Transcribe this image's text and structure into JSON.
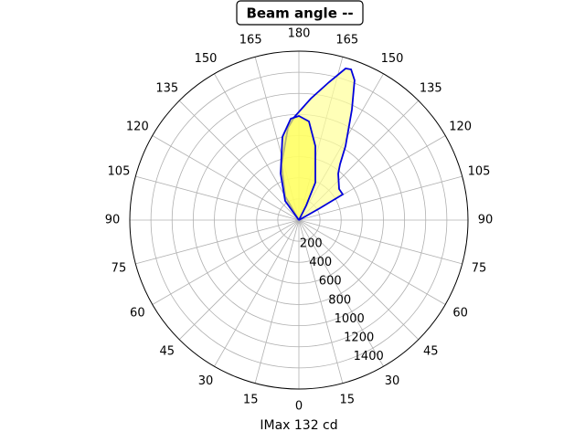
{
  "chart_data": {
    "type": "polar",
    "title": "Beam angle --",
    "xlabel": "IMax 132 cd",
    "rlim": [
      0,
      1600
    ],
    "rticks": [
      200,
      400,
      600,
      800,
      1000,
      1200,
      1400
    ],
    "thetaticks": [
      0,
      15,
      30,
      45,
      60,
      75,
      90,
      105,
      120,
      135,
      150,
      165,
      180,
      {
        "value": 195,
        "label": "165"
      },
      {
        "value": 210,
        "label": "150"
      },
      {
        "value": 225,
        "label": "135"
      },
      {
        "value": 240,
        "label": "120"
      },
      {
        "value": 255,
        "label": "105"
      },
      {
        "value": 270,
        "label": "90"
      },
      {
        "value": 285,
        "label": "75"
      },
      {
        "value": 300,
        "label": "60"
      },
      {
        "value": 315,
        "label": "45"
      },
      {
        "value": 330,
        "label": "30"
      },
      {
        "value": 345,
        "label": "15"
      }
    ],
    "grid": true,
    "series": [
      {
        "color": "#0000dd",
        "fill": "#ffff99",
        "theta": [
          0,
          119.5,
          120.3,
          127.7,
          139.9,
          143.6,
          147.8,
          154.4,
          158.3,
          160.9,
          162.9,
          167.7,
          174.4,
          182.5,
          186.8,
          197.3,
          210,
          0
        ],
        "values": [
          0,
          228,
          481,
          481,
          577,
          656,
          828,
          1160,
          1425,
          1510,
          1502,
          1337,
          1156,
          978,
          880,
          553,
          260,
          0
        ]
      },
      {
        "color": "#0000dd",
        "fill": "#ffff55",
        "theta": [
          0,
          215.5,
          201.4,
          191.2,
          184.6,
          180,
          174.2,
          167.5,
          156.3,
          153.4,
          0
        ],
        "values": [
          0,
          223,
          474,
          803,
          963,
          986,
          939,
          718,
          387,
          155,
          0
        ]
      }
    ]
  }
}
